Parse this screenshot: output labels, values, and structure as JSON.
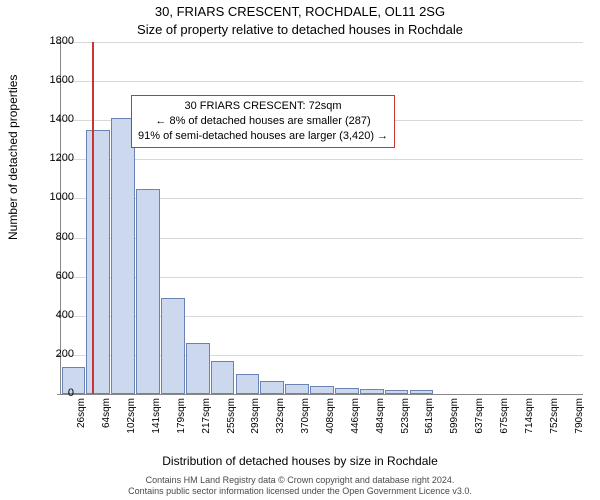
{
  "title_main": "30, FRIARS CRESCENT, ROCHDALE, OL11 2SG",
  "title_sub": "Size of property relative to detached houses in Rochdale",
  "ylabel": "Number of detached properties",
  "xlabel": "Distribution of detached houses by size in Rochdale",
  "chart": {
    "type": "histogram",
    "background_color": "#ffffff",
    "grid_color": "#d8d8d8",
    "axis_color": "#888888",
    "bar_fill": "#ccd8ee",
    "bar_border": "#6b82b5",
    "refline_color": "#cc3333",
    "ylim": [
      0,
      1800
    ],
    "ytick_step": 200,
    "yticks": [
      0,
      200,
      400,
      600,
      800,
      1000,
      1200,
      1400,
      1600,
      1800
    ],
    "xticks": [
      "26sqm",
      "64sqm",
      "102sqm",
      "141sqm",
      "179sqm",
      "217sqm",
      "255sqm",
      "293sqm",
      "332sqm",
      "370sqm",
      "408sqm",
      "446sqm",
      "484sqm",
      "523sqm",
      "561sqm",
      "599sqm",
      "637sqm",
      "675sqm",
      "714sqm",
      "752sqm",
      "790sqm"
    ],
    "bar_values": [
      140,
      1350,
      1410,
      1050,
      490,
      260,
      170,
      100,
      65,
      50,
      40,
      30,
      25,
      20,
      18,
      0,
      0,
      0,
      0,
      0,
      0
    ],
    "refline_at_value": 72,
    "x_min": 26,
    "x_max": 790
  },
  "annotation": {
    "line1": "30 FRIARS CRESCENT: 72sqm",
    "line2": "← 8% of detached houses are smaller (287)",
    "line3": "91% of semi-detached houses are larger (3,420) →"
  },
  "footer_line1": "Contains HM Land Registry data © Crown copyright and database right 2024.",
  "footer_line2": "Contains public sector information licensed under the Open Government Licence v3.0."
}
